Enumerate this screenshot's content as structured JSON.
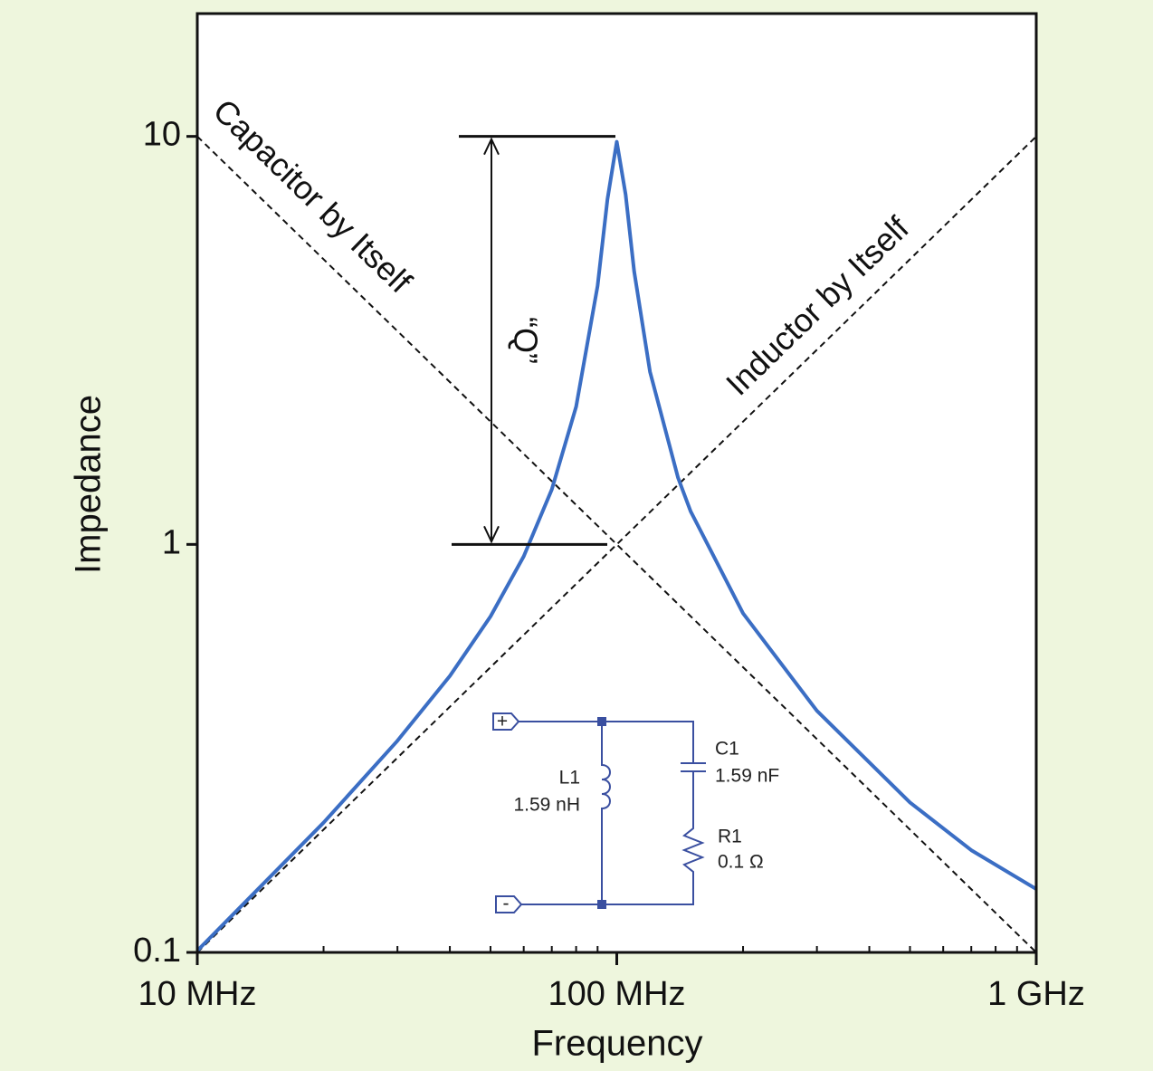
{
  "chart_data": {
    "type": "line",
    "xlabel": "Frequency",
    "ylabel": "Impedance",
    "xscale": "log",
    "yscale": "log",
    "xlim": [
      10,
      1000
    ],
    "ylim": [
      0.1,
      20
    ],
    "xticks": [
      {
        "value": 10,
        "label": "10 MHz"
      },
      {
        "value": 100,
        "label": "100 MHz"
      },
      {
        "value": 1000,
        "label": "1 GHz"
      }
    ],
    "xminor_ticks": [
      20,
      30,
      40,
      50,
      60,
      70,
      80,
      90,
      200,
      300,
      400,
      500,
      600,
      700,
      800,
      900
    ],
    "yticks": [
      0.1,
      1,
      10
    ],
    "series": [
      {
        "name": "Impedance",
        "color": "#3b6ec4",
        "style": "solid",
        "x": [
          10,
          20,
          30,
          40,
          50,
          60,
          70,
          80,
          90,
          95,
          100,
          105,
          110,
          120,
          140,
          150,
          200,
          300,
          500,
          700,
          1000
        ],
        "values": [
          0.101,
          0.208,
          0.33,
          0.476,
          0.666,
          0.935,
          1.363,
          2.176,
          4.3,
          7.01,
          9.7,
          7.2,
          4.67,
          2.65,
          1.457,
          1.205,
          0.678,
          0.391,
          0.233,
          0.178,
          0.143
        ]
      },
      {
        "name": "Capacitor by Itself",
        "color": "#111111",
        "style": "dashed",
        "x": [
          10,
          1000
        ],
        "values": [
          10,
          0.1
        ]
      },
      {
        "name": "Inductor by Itself",
        "color": "#111111",
        "style": "dashed",
        "x": [
          10,
          1000
        ],
        "values": [
          0.1,
          10
        ]
      }
    ],
    "q_marker": {
      "label": "“Q”",
      "low": 1,
      "high": 10
    }
  },
  "circuit": {
    "plus": "+",
    "minus": "-",
    "L1": "L1",
    "L1_value": "1.59 nH",
    "C1": "C1",
    "C1_value": "1.59 nF",
    "R1": "R1",
    "R1_value": "0.1 Ω"
  }
}
